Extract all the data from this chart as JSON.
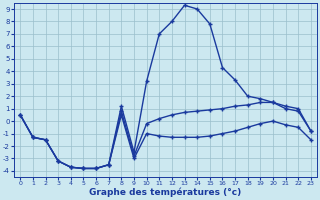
{
  "x": [
    0,
    1,
    2,
    3,
    4,
    5,
    6,
    7,
    8,
    9,
    10,
    11,
    12,
    13,
    14,
    15,
    16,
    17,
    18,
    19,
    20,
    21,
    22,
    23
  ],
  "series_top": [
    0.5,
    -1.3,
    -1.5,
    -3.2,
    -3.7,
    -3.8,
    -3.8,
    -3.5,
    1.2,
    -2.5,
    3.2,
    7.0,
    8.0,
    9.3,
    9.0,
    7.8,
    4.3,
    3.3,
    2.0,
    1.8,
    1.5,
    1.0,
    0.8,
    -0.8
  ],
  "series_mid": [
    0.5,
    -1.3,
    -1.5,
    -3.2,
    -3.7,
    -3.8,
    -3.8,
    -3.5,
    0.8,
    -2.8,
    -0.2,
    0.2,
    0.5,
    0.7,
    0.8,
    0.9,
    1.0,
    1.2,
    1.3,
    1.5,
    1.5,
    1.2,
    1.0,
    -0.8
  ],
  "series_bot": [
    0.5,
    -1.3,
    -1.5,
    -3.2,
    -3.7,
    -3.8,
    -3.8,
    -3.5,
    0.5,
    -3.0,
    -1.0,
    -1.2,
    -1.3,
    -1.3,
    -1.3,
    -1.2,
    -1.0,
    -0.8,
    -0.5,
    -0.2,
    0.0,
    -0.3,
    -0.5,
    -1.5
  ],
  "bg_color": "#cce8f0",
  "line_color": "#1a3a9e",
  "grid_color": "#9bbfcc",
  "xlabel": "Graphe des températures (°c)",
  "ylim": [
    -4.5,
    9.5
  ],
  "xlim": [
    -0.5,
    23.5
  ],
  "yticks": [
    -4,
    -3,
    -2,
    -1,
    0,
    1,
    2,
    3,
    4,
    5,
    6,
    7,
    8,
    9
  ],
  "xticks": [
    0,
    1,
    2,
    3,
    4,
    5,
    6,
    7,
    8,
    9,
    10,
    11,
    12,
    13,
    14,
    15,
    16,
    17,
    18,
    19,
    20,
    21,
    22,
    23
  ]
}
